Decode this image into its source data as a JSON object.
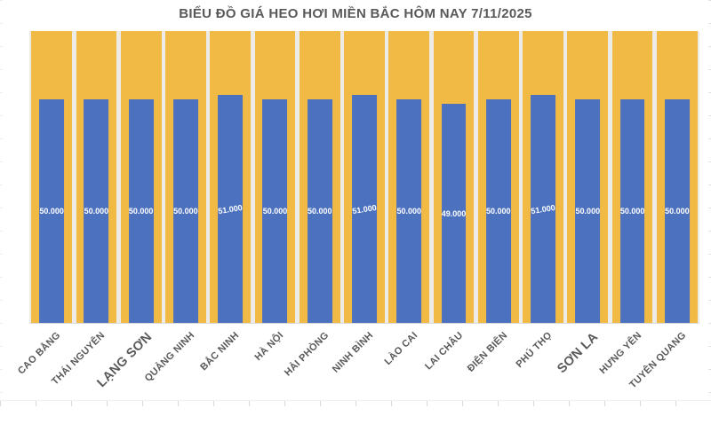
{
  "colors": {
    "bar_blue": "#4C72BF",
    "column_gold": "#F0BA44",
    "column_gap": "#EDEBE8",
    "title_text": "#595959",
    "category_text": "#595959",
    "value_text": "#FFFFFF",
    "axis_line": "#D9D9D9"
  },
  "chart_data": {
    "type": "bar",
    "title": "BIỂU ĐỒ GIÁ HEO HƠI MIỀN BẮC HÔM NAY 7/11/2025",
    "categories": [
      "CAO BẰNG",
      "THÁI NGUYÊN",
      "LẠNG SƠN",
      "QUẢNG NINH",
      "BẮC NINH",
      "HÀ NỘI",
      "HẢI PHÒNG",
      "NINH BÌNH",
      "LÀO CAI",
      "LAI CHÂU",
      "ĐIỆN BIÊN",
      "PHÚ THỌ",
      "SƠN LA",
      "HƯNG YÊN",
      "TUYÊN QUANG"
    ],
    "values": [
      50000,
      50000,
      50000,
      50000,
      51000,
      50000,
      50000,
      51000,
      50000,
      49000,
      50000,
      51000,
      50000,
      50000,
      50000
    ],
    "value_labels": [
      "50.000",
      "50.000",
      "50.000",
      "50.000",
      "51.000",
      "50.000",
      "50.000",
      "51.000",
      "50.000",
      "49.000",
      "50.000",
      "51.000",
      "50.000",
      "50.000",
      "50.000"
    ],
    "xlabel": "",
    "ylabel": "",
    "ylim": [
      0,
      65300
    ],
    "y_axis_visible": false,
    "gridlines": false,
    "legend": "none",
    "background_columns_full_height": true,
    "large_category_label_indices": [
      2,
      12
    ],
    "tilted_value_label_indices": [
      4,
      7,
      11
    ]
  }
}
